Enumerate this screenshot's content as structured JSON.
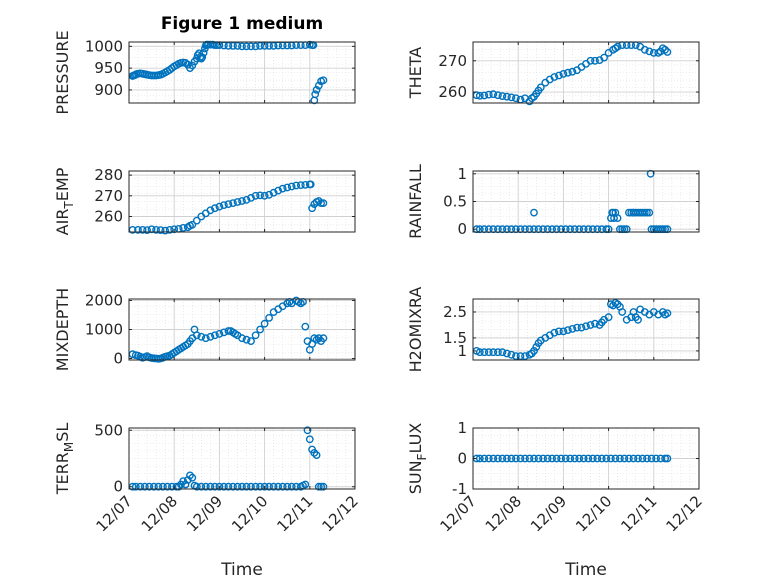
{
  "figure": {
    "title": "Figure 1 medium"
  },
  "chart_data": [
    {
      "type": "scatter",
      "id": "pressure",
      "ylabel": "PRESSURE",
      "ylim": [
        870,
        1010
      ],
      "yticks": [
        900,
        950,
        1000
      ],
      "xlim": [
        0,
        5
      ],
      "xticks": [],
      "grid": true,
      "marker": "circle-open",
      "series": [
        {
          "x": [
            0.08,
            0.1,
            0.13,
            0.16,
            0.2,
            0.25,
            0.3,
            0.35,
            0.4,
            0.45,
            0.5,
            0.55,
            0.6,
            0.65,
            0.7,
            0.75,
            0.8,
            0.85,
            0.9,
            0.95,
            1.0,
            1.05,
            1.1,
            1.15,
            1.2,
            1.25,
            1.3,
            1.35,
            1.4,
            1.45,
            1.5,
            1.52,
            1.55,
            1.58,
            1.6,
            1.62,
            1.65,
            1.68,
            1.7,
            1.72,
            1.75,
            1.8,
            1.85,
            1.9,
            1.95,
            2.0,
            2.1,
            2.2,
            2.3,
            2.4,
            2.5,
            2.6,
            2.7,
            2.8,
            2.9,
            3.0,
            3.1,
            3.2,
            3.3,
            3.4,
            3.5,
            3.6,
            3.7,
            3.8,
            3.9,
            4.0,
            4.05,
            4.08,
            4.1,
            4.12,
            4.15,
            4.2,
            4.25,
            4.3
          ],
          "y": [
            932,
            933,
            934,
            936,
            937,
            938,
            937,
            936,
            935,
            934,
            933,
            933,
            933,
            934,
            935,
            937,
            940,
            943,
            946,
            950,
            954,
            957,
            960,
            962,
            963,
            962,
            958,
            950,
            956,
            965,
            972,
            980,
            984,
            976,
            972,
            975,
            985,
            995,
            1002,
            1004,
            1004,
            1004,
            1004,
            1003,
            1003,
            1003,
            1002,
            1001,
            1001,
            1001,
            1000,
            1000,
            1000,
            1000,
            1001,
            1001,
            1001,
            1001,
            1002,
            1002,
            1002,
            1002,
            1003,
            1003,
            1003,
            1004,
            1003,
            1003,
            876,
            890,
            900,
            910,
            920,
            922
          ]
        }
      ]
    },
    {
      "type": "scatter",
      "id": "theta",
      "ylabel": "THETA",
      "ylim": [
        256.5,
        276
      ],
      "yticks": [
        260,
        270
      ],
      "xlim": [
        0,
        5
      ],
      "xticks": [],
      "grid": true,
      "marker": "circle-open",
      "series": [
        {
          "x": [
            0.08,
            0.15,
            0.25,
            0.35,
            0.45,
            0.55,
            0.65,
            0.75,
            0.85,
            0.95,
            1.05,
            1.15,
            1.25,
            1.3,
            1.35,
            1.4,
            1.45,
            1.5,
            1.6,
            1.7,
            1.8,
            1.9,
            2.0,
            2.1,
            2.2,
            2.3,
            2.4,
            2.5,
            2.6,
            2.7,
            2.8,
            2.9,
            3.0,
            3.1,
            3.15,
            3.2,
            3.3,
            3.4,
            3.5,
            3.6,
            3.7,
            3.8,
            3.9,
            4.0,
            4.1,
            4.15,
            4.2,
            4.25,
            4.3
          ],
          "y": [
            259,
            258.8,
            258.9,
            259.2,
            259.3,
            259,
            258.7,
            258.5,
            258.3,
            258,
            257.6,
            258,
            257,
            258,
            258.5,
            259.5,
            260.5,
            261.5,
            263,
            264,
            264.8,
            265.3,
            265.8,
            266.2,
            266.5,
            267,
            268,
            269,
            270,
            270,
            270.2,
            271,
            272.5,
            273.5,
            274,
            274.5,
            275,
            275,
            275,
            275,
            274.5,
            273.5,
            273,
            272.5,
            272.5,
            273,
            274,
            273.5,
            272.8
          ]
        }
      ]
    },
    {
      "type": "scatter",
      "id": "air_temp",
      "ylabel": "AIR_TEMP",
      "ylim": [
        252.5,
        282
      ],
      "yticks": [
        260,
        270,
        280
      ],
      "xlim": [
        0,
        5
      ],
      "xticks": [],
      "grid": true,
      "marker": "circle-open",
      "series": [
        {
          "x": [
            0.08,
            0.2,
            0.3,
            0.4,
            0.5,
            0.6,
            0.7,
            0.8,
            0.9,
            1.0,
            1.1,
            1.2,
            1.3,
            1.35,
            1.4,
            1.5,
            1.6,
            1.7,
            1.8,
            1.9,
            2.0,
            2.1,
            2.2,
            2.3,
            2.4,
            2.5,
            2.6,
            2.7,
            2.8,
            2.9,
            3.0,
            3.1,
            3.2,
            3.3,
            3.4,
            3.5,
            3.6,
            3.7,
            3.8,
            3.9,
            4.0,
            4.02,
            4.05,
            4.1,
            4.15,
            4.2,
            4.25,
            4.3
          ],
          "y": [
            253.5,
            253.5,
            253.5,
            253.4,
            253.8,
            253.5,
            253.4,
            253.2,
            253.5,
            253.8,
            254,
            254.5,
            254.8,
            255.5,
            256,
            258,
            260,
            261.5,
            263,
            264,
            264.8,
            265.5,
            266,
            266.5,
            267,
            267.5,
            268,
            269,
            270,
            270.2,
            270,
            270.5,
            271.5,
            272.5,
            273.5,
            274,
            274.5,
            275,
            275.2,
            275.3,
            275.5,
            275.5,
            264,
            266,
            267,
            267.5,
            266.5,
            266.5
          ]
        }
      ]
    },
    {
      "type": "scatter",
      "id": "rainfall",
      "ylabel": "RAINFALL",
      "ylim": [
        -0.05,
        1.05
      ],
      "yticks": [
        0,
        0.5,
        1
      ],
      "xlim": [
        0,
        5
      ],
      "xticks": [],
      "grid": true,
      "marker": "circle-open",
      "series": [
        {
          "x": [
            0.08,
            0.15,
            0.25,
            0.35,
            0.45,
            0.55,
            0.65,
            0.75,
            0.85,
            0.95,
            1.05,
            1.15,
            1.25,
            1.35,
            1.45,
            1.55,
            1.65,
            1.75,
            1.85,
            1.95,
            2.05,
            2.15,
            2.25,
            2.35,
            2.45,
            2.55,
            2.65,
            2.75,
            2.85,
            2.95,
            3.0,
            3.05,
            3.08,
            3.1,
            3.12,
            3.15,
            3.2,
            3.25,
            3.3,
            3.35,
            3.4,
            3.45,
            3.5,
            3.55,
            3.6,
            3.65,
            3.7,
            3.75,
            3.8,
            3.85,
            3.9,
            3.95,
            4.0,
            4.05,
            4.1,
            4.15,
            4.2,
            4.25,
            4.3,
            1.35,
            3.55
          ],
          "y": [
            0,
            0,
            0,
            0,
            0,
            0,
            0,
            0,
            0,
            0,
            0,
            0,
            0,
            0,
            0,
            0,
            0,
            0,
            0,
            0,
            0,
            0,
            0,
            0,
            0,
            0,
            0,
            0,
            0,
            0,
            0,
            0.2,
            0.3,
            0.3,
            0.2,
            0.3,
            0.2,
            0,
            0,
            0,
            0,
            0.3,
            0.3,
            0.3,
            0.3,
            0.3,
            0.3,
            0.3,
            0.3,
            0.3,
            0.3,
            0,
            0,
            0,
            0,
            0,
            0,
            0,
            0,
            0.3,
            0.3
          ]
        },
        {
          "x": [
            3.93
          ],
          "y": [
            1.0
          ]
        }
      ]
    },
    {
      "type": "scatter",
      "id": "mixdepth",
      "ylabel": "MIXDEPTH",
      "ylim": [
        -50,
        2050
      ],
      "yticks": [
        0,
        1000,
        2000
      ],
      "xlim": [
        0,
        5
      ],
      "xticks": [],
      "grid": true,
      "marker": "circle-open",
      "series": [
        {
          "x": [
            0.08,
            0.15,
            0.2,
            0.25,
            0.3,
            0.35,
            0.4,
            0.45,
            0.5,
            0.55,
            0.6,
            0.65,
            0.7,
            0.75,
            0.8,
            0.85,
            0.9,
            0.95,
            1.0,
            1.05,
            1.1,
            1.15,
            1.2,
            1.25,
            1.3,
            1.35,
            1.4,
            1.45,
            1.5,
            1.6,
            1.7,
            1.8,
            1.9,
            2.0,
            2.1,
            2.2,
            2.25,
            2.3,
            2.35,
            2.4,
            2.5,
            2.6,
            2.7,
            2.8,
            2.9,
            3.0,
            3.1,
            3.2,
            3.3,
            3.4,
            3.5,
            3.55,
            3.6,
            3.7,
            3.75,
            3.8,
            3.85,
            3.9,
            3.95,
            4.0,
            4.05,
            4.1,
            4.15,
            4.2,
            4.25,
            4.3
          ],
          "y": [
            150,
            120,
            100,
            60,
            30,
            50,
            80,
            40,
            20,
            10,
            0,
            -10,
            0,
            30,
            60,
            80,
            100,
            150,
            200,
            250,
            300,
            350,
            400,
            450,
            500,
            600,
            700,
            1000,
            800,
            750,
            700,
            750,
            800,
            850,
            900,
            950,
            950,
            900,
            850,
            800,
            700,
            650,
            600,
            800,
            1000,
            1200,
            1400,
            1600,
            1700,
            1800,
            1900,
            1950,
            1900,
            2000,
            1950,
            1900,
            1950,
            1100,
            600,
            300,
            500,
            700,
            650,
            700,
            600,
            700
          ]
        }
      ]
    },
    {
      "type": "scatter",
      "id": "h2omixra",
      "ylabel": "H2OMIXRA",
      "ylim": [
        0.65,
        3.0
      ],
      "yticks": [
        1,
        1.5,
        2.5
      ],
      "xlim": [
        0,
        5
      ],
      "xticks": [],
      "grid": true,
      "marker": "circle-open",
      "series": [
        {
          "x": [
            0.08,
            0.15,
            0.25,
            0.35,
            0.45,
            0.55,
            0.65,
            0.75,
            0.85,
            0.95,
            1.05,
            1.15,
            1.25,
            1.3,
            1.35,
            1.4,
            1.45,
            1.5,
            1.6,
            1.7,
            1.8,
            1.9,
            2.0,
            2.1,
            2.2,
            2.3,
            2.4,
            2.5,
            2.6,
            2.7,
            2.8,
            2.85,
            2.9,
            3.0,
            3.05,
            3.1,
            3.15,
            3.2,
            3.25,
            3.3,
            3.4,
            3.5,
            3.55,
            3.6,
            3.65,
            3.7,
            3.8,
            3.9,
            4.0,
            4.1,
            4.2,
            4.25,
            4.3
          ],
          "y": [
            1.0,
            0.95,
            0.95,
            0.95,
            0.95,
            0.95,
            0.95,
            0.9,
            0.85,
            0.8,
            0.8,
            0.8,
            0.85,
            0.9,
            1.0,
            1.15,
            1.3,
            1.4,
            1.5,
            1.6,
            1.7,
            1.75,
            1.75,
            1.8,
            1.85,
            1.9,
            1.9,
            1.95,
            2.0,
            2.05,
            2.0,
            2.1,
            2.2,
            2.3,
            2.8,
            2.75,
            2.85,
            2.8,
            2.7,
            2.5,
            2.2,
            2.3,
            2.5,
            2.3,
            2.2,
            2.6,
            2.5,
            2.4,
            2.5,
            2.4,
            2.5,
            2.4,
            2.45
          ]
        }
      ]
    },
    {
      "type": "scatter",
      "id": "terr_msl",
      "ylabel": "TERR_MSL",
      "ylim": [
        -20,
        520
      ],
      "yticks": [
        0,
        500
      ],
      "xlim": [
        0,
        5
      ],
      "xticks": [
        "12/07",
        "12/08",
        "12/09",
        "12/10",
        "12/11",
        "12/12"
      ],
      "grid": true,
      "marker": "circle-open",
      "series": [
        {
          "x": [
            0.08,
            0.15,
            0.25,
            0.35,
            0.45,
            0.55,
            0.65,
            0.75,
            0.85,
            0.95,
            1.05,
            1.1,
            1.15,
            1.2,
            1.25,
            1.3,
            1.35,
            1.4,
            1.45,
            1.5,
            1.6,
            1.7,
            1.8,
            1.9,
            2.0,
            2.1,
            2.2,
            2.3,
            2.4,
            2.5,
            2.6,
            2.7,
            2.8,
            2.9,
            3.0,
            3.1,
            3.2,
            3.3,
            3.4,
            3.5,
            3.6,
            3.7,
            3.8,
            3.85,
            3.9,
            3.95,
            4.0,
            4.05,
            4.1,
            4.15,
            4.2,
            4.25,
            4.3
          ],
          "y": [
            0,
            0,
            0,
            0,
            0,
            0,
            0,
            0,
            0,
            0,
            0,
            0,
            20,
            50,
            20,
            60,
            100,
            80,
            10,
            0,
            0,
            0,
            0,
            0,
            0,
            0,
            0,
            0,
            0,
            0,
            0,
            0,
            0,
            0,
            0,
            0,
            0,
            0,
            0,
            0,
            0,
            0,
            0,
            10,
            20,
            500,
            420,
            330,
            300,
            280,
            0,
            0,
            0
          ]
        }
      ]
    },
    {
      "type": "scatter",
      "id": "sun_flux",
      "ylabel": "SUN_FLUX",
      "ylim": [
        -1,
        1
      ],
      "yticks": [
        -1,
        0,
        1
      ],
      "xlim": [
        0,
        5
      ],
      "xticks": [
        "12/07",
        "12/08",
        "12/09",
        "12/10",
        "12/11",
        "12/12"
      ],
      "grid": true,
      "marker": "circle-open",
      "series": [
        {
          "x": [
            0.08,
            0.15,
            0.25,
            0.35,
            0.45,
            0.55,
            0.65,
            0.75,
            0.85,
            0.95,
            1.05,
            1.15,
            1.25,
            1.35,
            1.45,
            1.55,
            1.65,
            1.75,
            1.85,
            1.95,
            2.05,
            2.15,
            2.25,
            2.35,
            2.45,
            2.55,
            2.65,
            2.75,
            2.85,
            2.95,
            3.05,
            3.15,
            3.25,
            3.35,
            3.45,
            3.55,
            3.65,
            3.75,
            3.85,
            3.95,
            4.05,
            4.15,
            4.25,
            4.3
          ],
          "y": [
            0,
            0,
            0,
            0,
            0,
            0,
            0,
            0,
            0,
            0,
            0,
            0,
            0,
            0,
            0,
            0,
            0,
            0,
            0,
            0,
            0,
            0,
            0,
            0,
            0,
            0,
            0,
            0,
            0,
            0,
            0,
            0,
            0,
            0,
            0,
            0,
            0,
            0,
            0,
            0,
            0,
            0,
            0,
            0
          ]
        }
      ]
    }
  ],
  "xlabels": [
    "Time",
    "Time"
  ],
  "colors": {
    "marker": "#0072BD",
    "axis": "#262626",
    "grid": "#DCDCDC"
  }
}
